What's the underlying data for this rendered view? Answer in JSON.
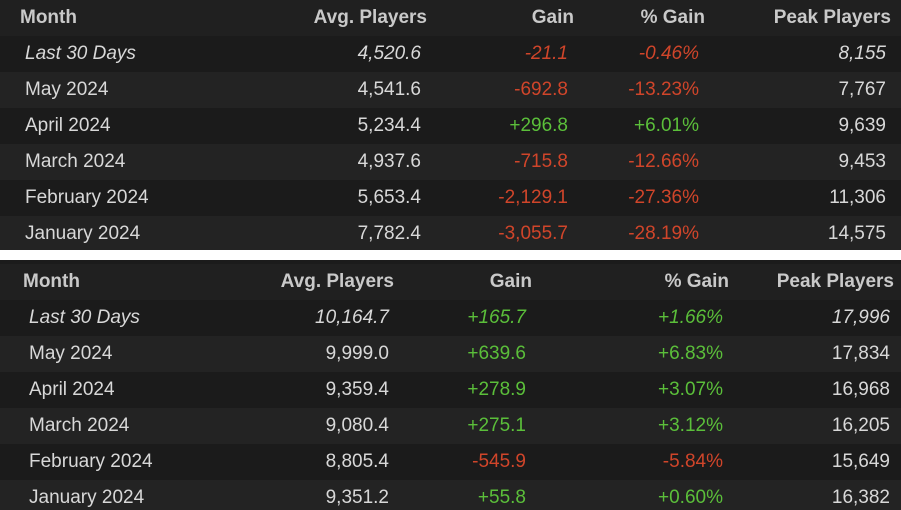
{
  "colors": {
    "background": "#1b1b1b",
    "positive": "#5bbf3a",
    "negative": "#d0452a",
    "text": "#d8d8d8"
  },
  "tables": [
    {
      "headers": [
        "Month",
        "Avg. Players",
        "Gain",
        "% Gain",
        "Peak Players"
      ],
      "rows": [
        [
          "Last 30 Days",
          "4,520.6",
          "-21.1",
          "-0.46%",
          "8,155"
        ],
        [
          "May 2024",
          "4,541.6",
          "-692.8",
          "-13.23%",
          "7,767"
        ],
        [
          "April 2024",
          "5,234.4",
          "+296.8",
          "+6.01%",
          "9,639"
        ],
        [
          "March 2024",
          "4,937.6",
          "-715.8",
          "-12.66%",
          "9,453"
        ],
        [
          "February 2024",
          "5,653.4",
          "-2,129.1",
          "-27.36%",
          "11,306"
        ],
        [
          "January 2024",
          "7,782.4",
          "-3,055.7",
          "-28.19%",
          "14,575"
        ]
      ]
    },
    {
      "headers": [
        "Month",
        "Avg. Players",
        "Gain",
        "% Gain",
        "Peak Players"
      ],
      "rows": [
        [
          "Last 30 Days",
          "10,164.7",
          "+165.7",
          "+1.66%",
          "17,996"
        ],
        [
          "May 2024",
          "9,999.0",
          "+639.6",
          "+6.83%",
          "17,834"
        ],
        [
          "April 2024",
          "9,359.4",
          "+278.9",
          "+3.07%",
          "16,968"
        ],
        [
          "March 2024",
          "9,080.4",
          "+275.1",
          "+3.12%",
          "16,205"
        ],
        [
          "February 2024",
          "8,805.4",
          "-545.9",
          "-5.84%",
          "15,649"
        ],
        [
          "January 2024",
          "9,351.2",
          "+55.8",
          "+0.60%",
          "16,382"
        ]
      ]
    }
  ]
}
